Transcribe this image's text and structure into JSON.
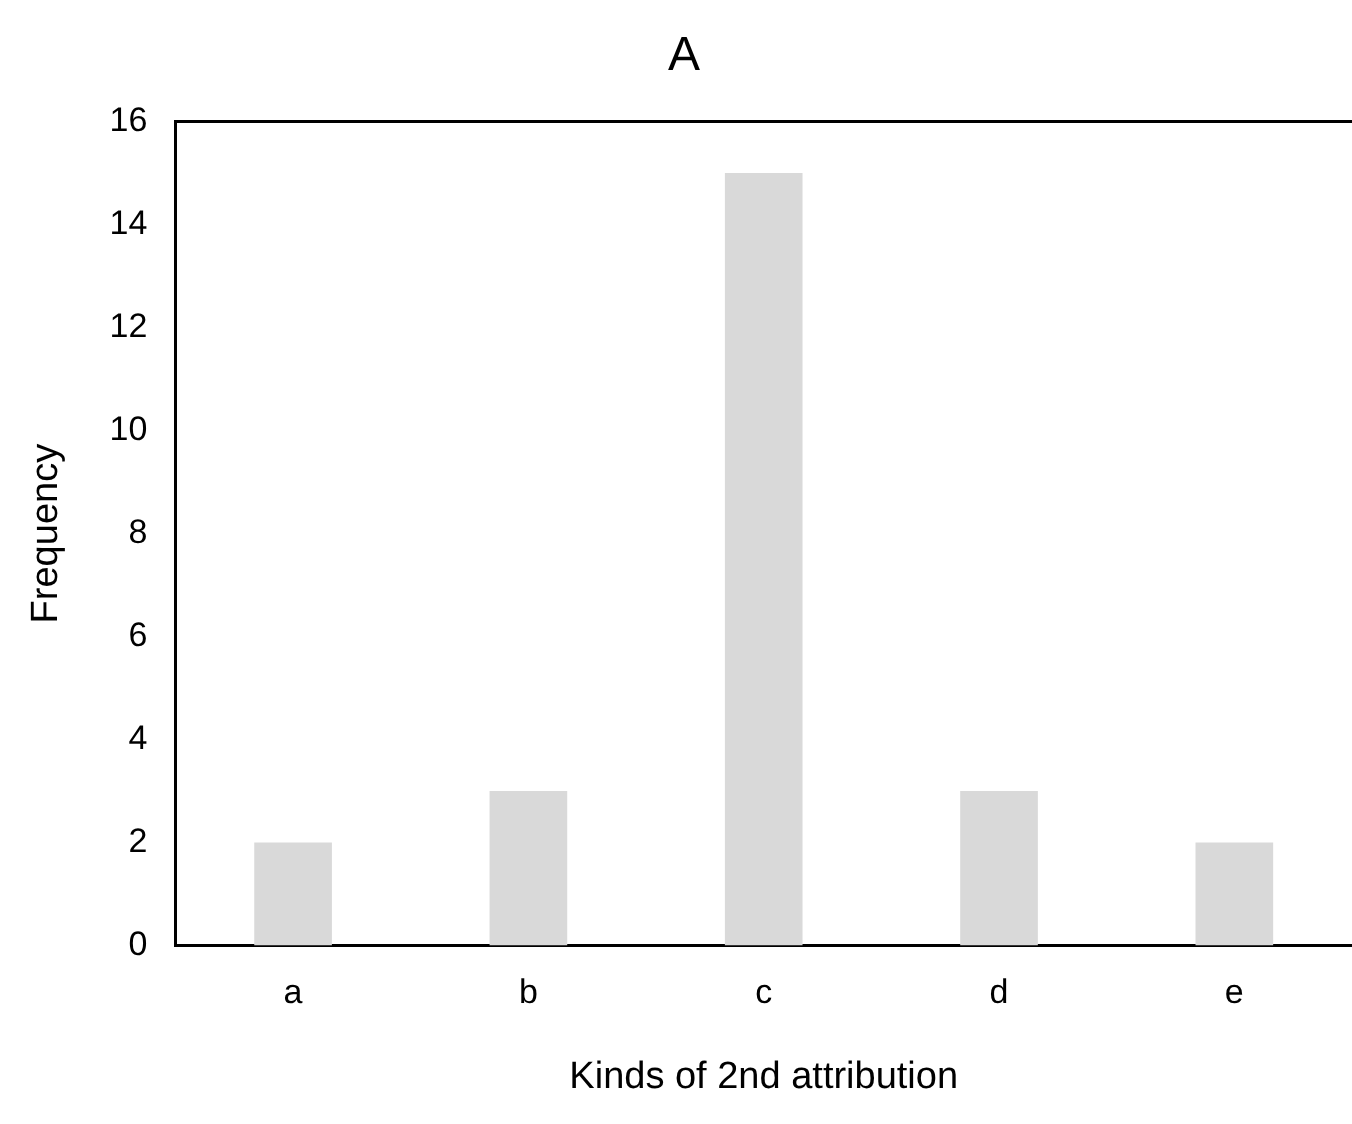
{
  "chart_data": {
    "type": "bar",
    "title": "A",
    "xlabel": "Kinds of 2nd attribution",
    "ylabel": "Frequency",
    "categories": [
      "a",
      "b",
      "c",
      "d",
      "e"
    ],
    "values": [
      2,
      3,
      15,
      3,
      2
    ],
    "color": "#d9d9d9",
    "ylim": [
      0,
      16
    ],
    "yticks": [
      0,
      2,
      4,
      6,
      8,
      10,
      12,
      14,
      16
    ],
    "grid": false,
    "legend": false
  }
}
